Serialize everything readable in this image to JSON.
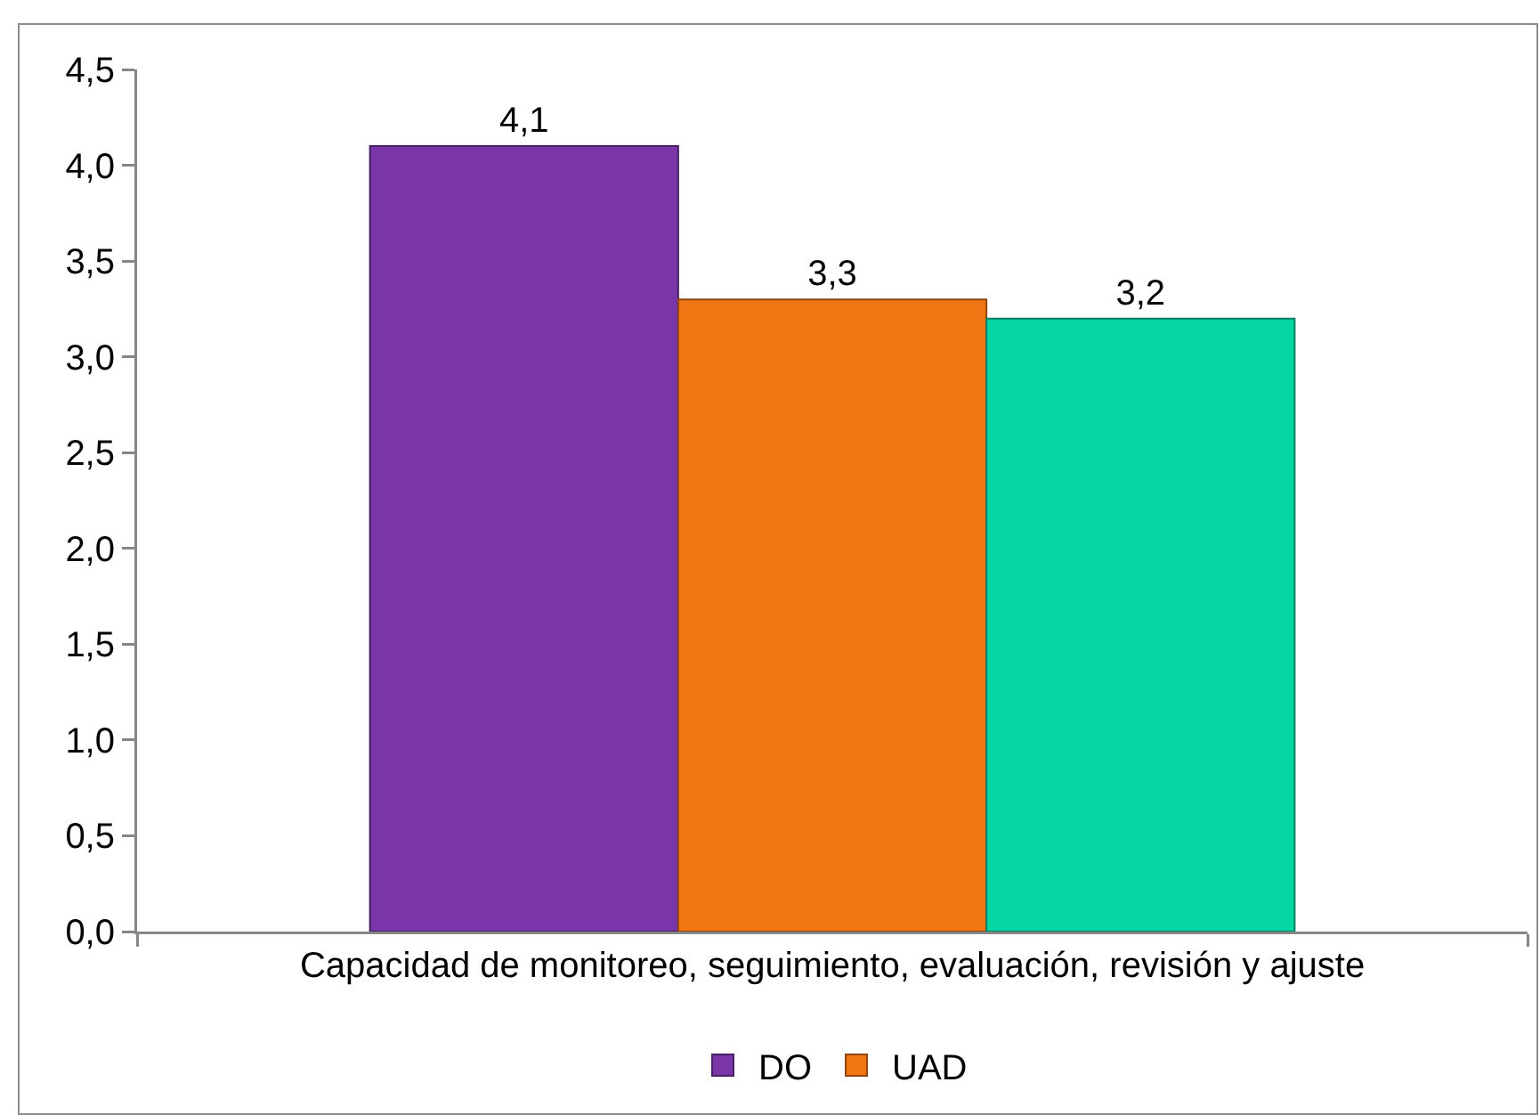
{
  "chart_data": {
    "type": "bar",
    "categories": [
      "Capacidad de monitoreo, seguimiento, evaluación, revisión y ajuste"
    ],
    "series": [
      {
        "name": "DO",
        "color": "#7a36a8",
        "values": [
          4.1
        ],
        "value_labels": [
          "4,1"
        ]
      },
      {
        "name": "UAD",
        "color": "#f07614",
        "values": [
          3.3
        ],
        "value_labels": [
          "3,3"
        ]
      },
      {
        "color": "#05d6a4",
        "values": [
          3.2
        ],
        "value_labels": [
          "3,2"
        ]
      }
    ],
    "ylim": [
      0,
      4.5
    ],
    "yticks": [
      {
        "value": 0,
        "label": "0,0"
      },
      {
        "value": 0.5,
        "label": "0,5"
      },
      {
        "value": 1,
        "label": "1,0"
      },
      {
        "value": 1.5,
        "label": "1,5"
      },
      {
        "value": 2,
        "label": "2,0"
      },
      {
        "value": 2.5,
        "label": "2,5"
      },
      {
        "value": 3,
        "label": "3,0"
      },
      {
        "value": 3.5,
        "label": "3,5"
      },
      {
        "value": 4,
        "label": "4,0"
      },
      {
        "value": 4.5,
        "label": "4,5"
      }
    ],
    "legend": "bottom"
  }
}
